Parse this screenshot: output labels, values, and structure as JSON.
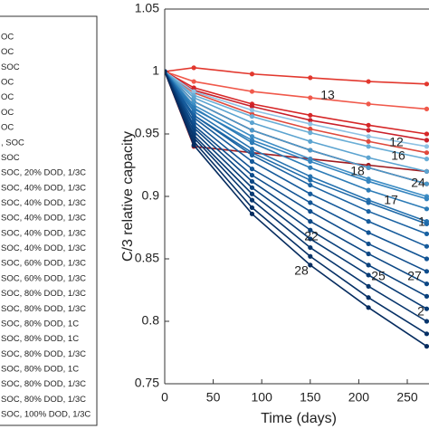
{
  "chart_data": {
    "type": "line",
    "xlabel": "Time (days)",
    "ylabel": "C/3 relative capacity",
    "xlim": [
      0,
      272
    ],
    "ylim": [
      0.75,
      1.05
    ],
    "xticks": [
      0,
      50,
      100,
      150,
      200,
      250
    ],
    "yticks": [
      0.75,
      0.8,
      0.85,
      0.9,
      0.95,
      1,
      1.05
    ],
    "x": [
      0,
      30,
      90,
      150,
      210,
      270
    ],
    "series": [
      {
        "name": "OC",
        "color": "#e2382e",
        "values": [
          1,
          1.003,
          0.998,
          0.995,
          0.992,
          0.99
        ]
      },
      {
        "name": "OC",
        "color": "#f0594b",
        "values": [
          1,
          0.992,
          0.984,
          0.979,
          0.974,
          0.97
        ]
      },
      {
        "name": "SOC",
        "color": "#d62728",
        "values": [
          1,
          0.987,
          0.974,
          0.965,
          0.957,
          0.95
        ]
      },
      {
        "name": "OC",
        "color": "#c9202a",
        "values": [
          1,
          0.985,
          0.972,
          0.961,
          0.953,
          0.945
        ]
      },
      {
        "name": "OC",
        "color": "#e04a3c",
        "values": [
          1,
          0.983,
          0.966,
          0.954,
          0.944,
          0.935
        ]
      },
      {
        "name": "OC",
        "color": "#9e1a1f",
        "values": [
          1,
          0.94,
          0.935,
          0.93,
          0.925,
          0.92
        ]
      },
      {
        "name": "OC",
        "color": "#8b1218",
        "values": [
          1,
          0.976,
          0.953,
          0.937,
          0.923,
          0.91
        ]
      },
      {
        "name": ", SOC",
        "color": "#8fc2e3",
        "values": [
          1,
          0.984,
          0.969,
          0.958,
          0.948,
          0.94
        ]
      },
      {
        "name": "SOC",
        "color": "#6aaed6",
        "values": [
          1,
          0.981,
          0.964,
          0.951,
          0.94,
          0.93
        ]
      },
      {
        "name": "SOC, 20% DOD, 1/3C",
        "color": "#5ba3d0",
        "values": [
          1,
          0.979,
          0.959,
          0.944,
          0.931,
          0.92
        ]
      },
      {
        "name": "SOC, 40% DOD, 1/3C",
        "color": "#4a98c9",
        "values": [
          1,
          0.976,
          0.953,
          0.937,
          0.923,
          0.91
        ]
      },
      {
        "name": "SOC, 40% DOD, 1/3C",
        "color": "#3d8dc4",
        "values": [
          1,
          0.973,
          0.948,
          0.93,
          0.914,
          0.9
        ]
      },
      {
        "name": "SOC, 40% DOD, 1/3C",
        "color": "#3484bf",
        "values": [
          1,
          0.97,
          0.945,
          0.928,
          0.912,
          0.898
        ]
      },
      {
        "name": "SOC, 40% DOD, 1/3C",
        "color": "#2c7bb6",
        "values": [
          1,
          0.971,
          0.943,
          0.923,
          0.905,
          0.89
        ]
      },
      {
        "name": "SOC, 40% DOD, 1/3C",
        "color": "#2572b0",
        "values": [
          1,
          0.968,
          0.938,
          0.916,
          0.897,
          0.88
        ]
      },
      {
        "name": "SOC, 60% DOD, 1/3C",
        "color": "#1f6aa9",
        "values": [
          1,
          0.965,
          0.935,
          0.913,
          0.895,
          0.878
        ]
      },
      {
        "name": "SOC, 60% DOD, 1/3C",
        "color": "#1a62a2",
        "values": [
          1,
          0.965,
          0.933,
          0.909,
          0.888,
          0.87
        ]
      },
      {
        "name": "SOC, 80% DOD, 1/3C",
        "color": "#165b9b",
        "values": [
          1,
          0.963,
          0.928,
          0.902,
          0.88,
          0.86
        ]
      },
      {
        "name": "SOC, 80% DOD, 1/3C",
        "color": "#125494",
        "values": [
          1,
          0.96,
          0.922,
          0.895,
          0.871,
          0.85
        ]
      },
      {
        "name": "SOC, 80% DOD, 1C",
        "color": "#0f4d8c",
        "values": [
          1,
          0.957,
          0.917,
          0.888,
          0.862,
          0.84
        ]
      },
      {
        "name": "SOC, 80% DOD, 1C",
        "color": "#0c4784",
        "values": [
          1,
          0.955,
          0.912,
          0.88,
          0.854,
          0.83
        ]
      },
      {
        "name": "SOC, 80% DOD, 1/3C",
        "color": "#0a417c",
        "values": [
          1,
          0.952,
          0.907,
          0.873,
          0.845,
          0.82
        ]
      },
      {
        "name": "SOC, 80% DOD, 1C",
        "color": "#083b74",
        "values": [
          1,
          0.949,
          0.902,
          0.866,
          0.837,
          0.81
        ]
      },
      {
        "name": "SOC, 80% DOD, 1/3C",
        "color": "#08366d",
        "values": [
          1,
          0.947,
          0.897,
          0.859,
          0.828,
          0.8
        ]
      },
      {
        "name": "SOC, 80% DOD, 1/3C",
        "color": "#073166",
        "values": [
          1,
          0.944,
          0.891,
          0.852,
          0.819,
          0.79
        ]
      },
      {
        "name": "SOC, 100% DOD, 1/3C",
        "color": "#062c5f",
        "values": [
          1,
          0.941,
          0.886,
          0.845,
          0.811,
          0.78
        ]
      }
    ],
    "annotations": [
      "13",
      "12",
      "16",
      "18",
      "24",
      "17",
      "1",
      "22",
      "28",
      "25",
      "27",
      "2"
    ]
  }
}
